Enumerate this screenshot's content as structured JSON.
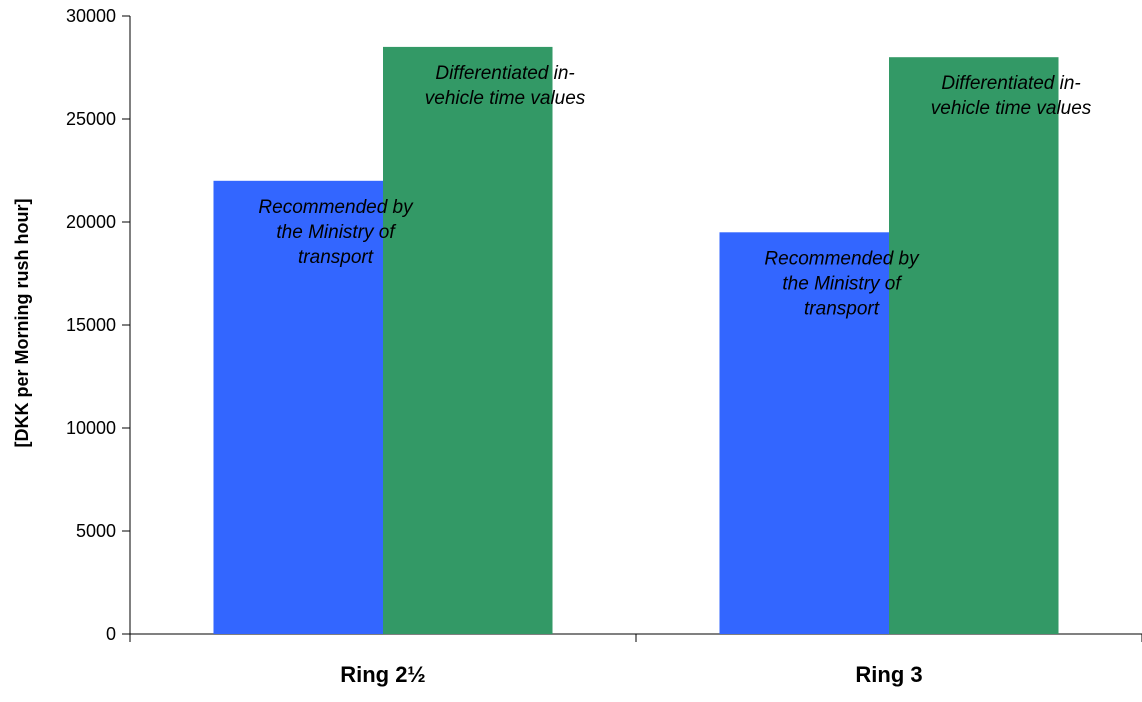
{
  "chart_data": {
    "type": "bar",
    "title": "",
    "xlabel": "",
    "ylabel": "[DKK per Morning rush hour]",
    "ylim": [
      0,
      30000
    ],
    "yticks": [
      0,
      5000,
      10000,
      15000,
      20000,
      25000,
      30000
    ],
    "categories": [
      "Ring 2½",
      "Ring 3"
    ],
    "series": [
      {
        "color": "#3366ff",
        "values": [
          22000,
          19500
        ],
        "data_labels": [
          [
            "Recommended by",
            "the Ministry of",
            "transport"
          ],
          [
            "Recommended by",
            "the Ministry of",
            "transport"
          ]
        ]
      },
      {
        "color": "#339966",
        "values": [
          28500,
          28000
        ],
        "data_labels": [
          [
            "Differentiated in-",
            "vehicle time values"
          ],
          [
            "Differentiated in-",
            "vehicle time values"
          ]
        ]
      }
    ],
    "grid": false,
    "legend": "none"
  }
}
